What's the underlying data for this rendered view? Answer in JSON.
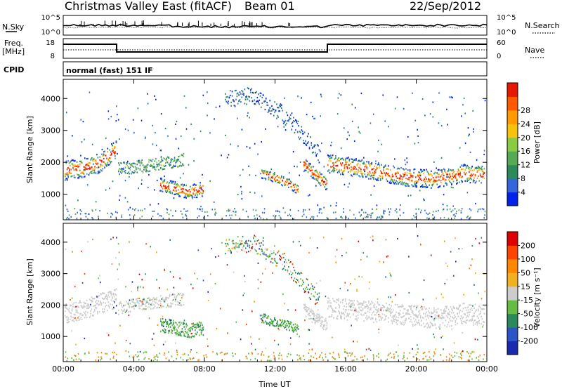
{
  "header": {
    "title": "Christmas Valley East (fitACF)",
    "beam": "Beam 01",
    "date": "22/Sep/2012"
  },
  "panels": {
    "nsky": {
      "left_label": "N.Sky",
      "right_label": "N.Search",
      "ytick_top": "10^5",
      "ytick_bottom": "10^0",
      "rtick_top": "10^5",
      "rtick_bottom": "10^0"
    },
    "freq": {
      "left_label_1": "Freq.",
      "left_label_2": "[MHz]",
      "right_label": "Nave",
      "ytick_top": "18",
      "ytick_bottom": "8",
      "rtick_top": "60",
      "rtick_bottom": "0"
    },
    "cpid": {
      "left_label": "CPID",
      "text": "normal (fast) 151 IF"
    }
  },
  "colors": {
    "power": [
      "#0022ee",
      "#3366dd",
      "#2a8a5a",
      "#55aa55",
      "#88cc44",
      "#f6c20a",
      "#ff9a00",
      "#ff5a00",
      "#e81800"
    ],
    "velocity": [
      "#1a2ab0",
      "#2a55c8",
      "#2a8a5a",
      "#66bb44",
      "#cccccc",
      "#f0b020",
      "#ff8800",
      "#ff4400",
      "#e00000"
    ]
  },
  "chart_data": [
    {
      "type": "heatmap",
      "title": "",
      "ylabel": "Slant Range [km]",
      "xlabel": "",
      "xticks": [
        "00:00",
        "04:00",
        "08:00",
        "12:00",
        "16:00",
        "20:00",
        "00:00"
      ],
      "yticks": [
        "1000",
        "2000",
        "3000",
        "4000"
      ],
      "ylim": [
        200,
        4600
      ],
      "colorbar": {
        "label": "Power [dB]",
        "ticks": [
          "4",
          "8",
          "12",
          "16",
          "20",
          "24",
          "28"
        ]
      }
    },
    {
      "type": "heatmap",
      "title": "",
      "ylabel": "Slant Range [km]",
      "xlabel": "Time UT",
      "xticks": [
        "00:00",
        "04:00",
        "08:00",
        "12:00",
        "16:00",
        "20:00",
        "00:00"
      ],
      "yticks": [
        "1000",
        "2000",
        "3000",
        "4000"
      ],
      "ylim": [
        200,
        4600
      ],
      "colorbar": {
        "label": "Velocity [m s⁻¹]",
        "ticks": [
          "200",
          "100",
          "50",
          "15",
          "-15",
          "-50",
          "-100",
          "-200"
        ]
      }
    }
  ]
}
